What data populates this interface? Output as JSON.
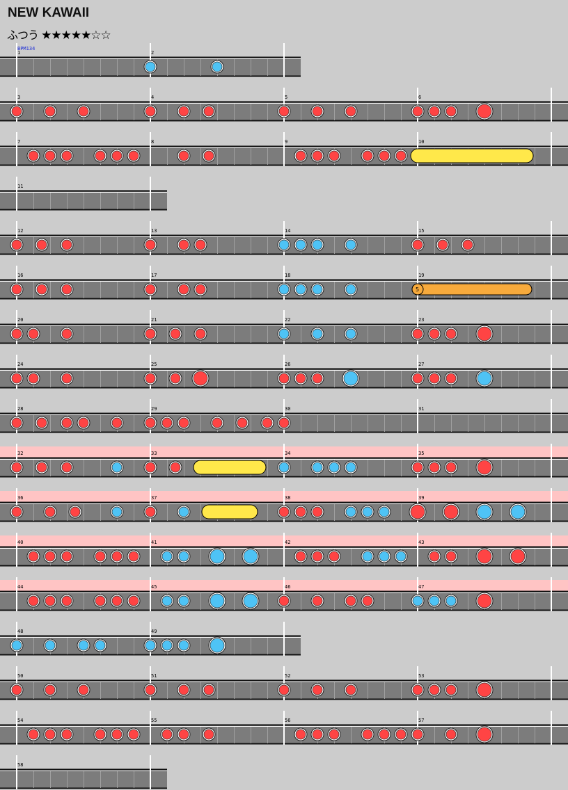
{
  "header": {
    "title": "NEW KAWAII",
    "difficulty_label": "ふつう",
    "stars": "★★★★★☆☆"
  },
  "bpm_label": "BPM134",
  "colors": {
    "don": "#ff4444",
    "ka": "#4ec3f5",
    "drumroll": "#ffe84a",
    "balloon": "#f7aa3c",
    "gogo": "#ffc4c4",
    "lane": "#7c7c7c"
  },
  "chart_data": {
    "type": "taiko-score",
    "note_legend": {
      "d": "don",
      "k": "ka",
      "D": "big don",
      "K": "big ka"
    },
    "rows": [
      {
        "bars": [
          1,
          2
        ],
        "gogo": false,
        "notes": [
          {
            "p": 8,
            "t": "k"
          },
          {
            "p": 12,
            "t": "k"
          }
        ]
      },
      {
        "bars": [
          3,
          4,
          5,
          6
        ],
        "gogo": false,
        "notes": [
          {
            "p": 0,
            "t": "d"
          },
          {
            "p": 2,
            "t": "d"
          },
          {
            "p": 4,
            "t": "d"
          },
          {
            "p": 8,
            "t": "d"
          },
          {
            "p": 10,
            "t": "d"
          },
          {
            "p": 11.5,
            "t": "d"
          },
          {
            "p": 16,
            "t": "d"
          },
          {
            "p": 18,
            "t": "d"
          },
          {
            "p": 20,
            "t": "d"
          },
          {
            "p": 24,
            "t": "d"
          },
          {
            "p": 25,
            "t": "d"
          },
          {
            "p": 26,
            "t": "d"
          },
          {
            "p": 28,
            "t": "D"
          }
        ]
      },
      {
        "bars": [
          7,
          8,
          9,
          10
        ],
        "gogo": false,
        "notes": [
          {
            "p": 1,
            "t": "d"
          },
          {
            "p": 2,
            "t": "d"
          },
          {
            "p": 3,
            "t": "d"
          },
          {
            "p": 5,
            "t": "d"
          },
          {
            "p": 6,
            "t": "d"
          },
          {
            "p": 7,
            "t": "d"
          },
          {
            "p": 10,
            "t": "d"
          },
          {
            "p": 11.5,
            "t": "d"
          },
          {
            "p": 17,
            "t": "d"
          },
          {
            "p": 18,
            "t": "d"
          },
          {
            "p": 19,
            "t": "d"
          },
          {
            "p": 21,
            "t": "d"
          },
          {
            "p": 22,
            "t": "d"
          },
          {
            "p": 23,
            "t": "d"
          }
        ],
        "rolls": [
          {
            "start": 24,
            "end": 30.5,
            "type": "drumroll"
          }
        ]
      },
      {
        "bars": [
          11
        ],
        "gogo": false,
        "notes": []
      },
      {
        "bars": [
          12,
          13,
          14,
          15
        ],
        "gogo": false,
        "notes": [
          {
            "p": 0,
            "t": "d"
          },
          {
            "p": 1.5,
            "t": "d"
          },
          {
            "p": 3,
            "t": "d"
          },
          {
            "p": 8,
            "t": "d"
          },
          {
            "p": 10,
            "t": "d"
          },
          {
            "p": 11,
            "t": "d"
          },
          {
            "p": 16,
            "t": "k"
          },
          {
            "p": 17,
            "t": "k"
          },
          {
            "p": 18,
            "t": "k"
          },
          {
            "p": 20,
            "t": "k"
          },
          {
            "p": 24,
            "t": "d"
          },
          {
            "p": 25.5,
            "t": "d"
          },
          {
            "p": 27,
            "t": "d"
          }
        ]
      },
      {
        "bars": [
          16,
          17,
          18,
          19
        ],
        "gogo": false,
        "notes": [
          {
            "p": 0,
            "t": "d"
          },
          {
            "p": 1.5,
            "t": "d"
          },
          {
            "p": 3,
            "t": "d"
          },
          {
            "p": 8,
            "t": "d"
          },
          {
            "p": 10,
            "t": "d"
          },
          {
            "p": 11,
            "t": "d"
          },
          {
            "p": 16,
            "t": "k"
          },
          {
            "p": 17,
            "t": "k"
          },
          {
            "p": 18,
            "t": "k"
          },
          {
            "p": 20,
            "t": "k"
          }
        ],
        "rolls": [
          {
            "start": 24,
            "end": 30.5,
            "type": "balloon",
            "count": "5"
          }
        ]
      },
      {
        "bars": [
          20,
          21,
          22,
          23
        ],
        "gogo": false,
        "notes": [
          {
            "p": 0,
            "t": "d"
          },
          {
            "p": 1,
            "t": "d"
          },
          {
            "p": 3,
            "t": "d"
          },
          {
            "p": 8,
            "t": "d"
          },
          {
            "p": 9.5,
            "t": "d"
          },
          {
            "p": 11,
            "t": "d"
          },
          {
            "p": 16,
            "t": "k"
          },
          {
            "p": 18,
            "t": "k"
          },
          {
            "p": 20,
            "t": "k"
          },
          {
            "p": 24,
            "t": "d"
          },
          {
            "p": 25,
            "t": "d"
          },
          {
            "p": 26,
            "t": "d"
          },
          {
            "p": 28,
            "t": "D"
          }
        ]
      },
      {
        "bars": [
          24,
          25,
          26,
          27
        ],
        "gogo": false,
        "notes": [
          {
            "p": 0,
            "t": "d"
          },
          {
            "p": 1,
            "t": "d"
          },
          {
            "p": 3,
            "t": "d"
          },
          {
            "p": 8,
            "t": "d"
          },
          {
            "p": 9.5,
            "t": "d"
          },
          {
            "p": 11,
            "t": "D"
          },
          {
            "p": 16,
            "t": "d"
          },
          {
            "p": 17,
            "t": "d"
          },
          {
            "p": 18,
            "t": "d"
          },
          {
            "p": 20,
            "t": "K"
          },
          {
            "p": 24,
            "t": "d"
          },
          {
            "p": 25,
            "t": "d"
          },
          {
            "p": 26,
            "t": "d"
          },
          {
            "p": 28,
            "t": "K"
          }
        ]
      },
      {
        "bars": [
          28,
          29,
          30,
          31
        ],
        "gogo": false,
        "notes": [
          {
            "p": 0,
            "t": "d"
          },
          {
            "p": 1.5,
            "t": "d"
          },
          {
            "p": 3,
            "t": "d"
          },
          {
            "p": 4,
            "t": "d"
          },
          {
            "p": 6,
            "t": "d"
          },
          {
            "p": 8,
            "t": "d"
          },
          {
            "p": 9,
            "t": "d"
          },
          {
            "p": 10,
            "t": "d"
          },
          {
            "p": 12,
            "t": "d"
          },
          {
            "p": 13.5,
            "t": "d"
          },
          {
            "p": 15,
            "t": "d"
          },
          {
            "p": 16,
            "t": "d"
          }
        ]
      },
      {
        "bars": [
          32,
          33,
          34,
          35
        ],
        "gogo": true,
        "notes": [
          {
            "p": 0,
            "t": "d"
          },
          {
            "p": 1.5,
            "t": "d"
          },
          {
            "p": 3,
            "t": "d"
          },
          {
            "p": 6,
            "t": "k"
          },
          {
            "p": 8,
            "t": "d"
          },
          {
            "p": 9.5,
            "t": "d"
          },
          {
            "p": 16,
            "t": "k"
          },
          {
            "p": 18,
            "t": "k"
          },
          {
            "p": 19,
            "t": "k"
          },
          {
            "p": 20,
            "t": "k"
          },
          {
            "p": 24,
            "t": "d"
          },
          {
            "p": 25,
            "t": "d"
          },
          {
            "p": 26,
            "t": "d"
          },
          {
            "p": 28,
            "t": "D"
          }
        ],
        "rolls": [
          {
            "start": 11,
            "end": 14.5,
            "type": "drumroll"
          }
        ]
      },
      {
        "bars": [
          36,
          37,
          38,
          39
        ],
        "gogo": true,
        "notes": [
          {
            "p": 0,
            "t": "d"
          },
          {
            "p": 2,
            "t": "d"
          },
          {
            "p": 3.5,
            "t": "d"
          },
          {
            "p": 6,
            "t": "k"
          },
          {
            "p": 8,
            "t": "d"
          },
          {
            "p": 10,
            "t": "k"
          },
          {
            "p": 16,
            "t": "d"
          },
          {
            "p": 17,
            "t": "d"
          },
          {
            "p": 18,
            "t": "d"
          },
          {
            "p": 20,
            "t": "k"
          },
          {
            "p": 21,
            "t": "k"
          },
          {
            "p": 22,
            "t": "k"
          },
          {
            "p": 24,
            "t": "D"
          },
          {
            "p": 26,
            "t": "D"
          },
          {
            "p": 28,
            "t": "K"
          },
          {
            "p": 30,
            "t": "K"
          }
        ],
        "rolls": [
          {
            "start": 11.5,
            "end": 14,
            "type": "drumroll"
          }
        ]
      },
      {
        "bars": [
          40,
          41,
          42,
          43
        ],
        "gogo": true,
        "notes": [
          {
            "p": 1,
            "t": "d"
          },
          {
            "p": 2,
            "t": "d"
          },
          {
            "p": 3,
            "t": "d"
          },
          {
            "p": 5,
            "t": "d"
          },
          {
            "p": 6,
            "t": "d"
          },
          {
            "p": 7,
            "t": "d"
          },
          {
            "p": 9,
            "t": "k"
          },
          {
            "p": 10,
            "t": "k"
          },
          {
            "p": 12,
            "t": "K"
          },
          {
            "p": 14,
            "t": "K"
          },
          {
            "p": 17,
            "t": "d"
          },
          {
            "p": 18,
            "t": "d"
          },
          {
            "p": 19,
            "t": "d"
          },
          {
            "p": 21,
            "t": "k"
          },
          {
            "p": 22,
            "t": "k"
          },
          {
            "p": 23,
            "t": "k"
          },
          {
            "p": 25,
            "t": "d"
          },
          {
            "p": 26,
            "t": "d"
          },
          {
            "p": 28,
            "t": "D"
          },
          {
            "p": 30,
            "t": "D"
          }
        ]
      },
      {
        "bars": [
          44,
          45,
          46,
          47
        ],
        "gogo": true,
        "notes": [
          {
            "p": 1,
            "t": "d"
          },
          {
            "p": 2,
            "t": "d"
          },
          {
            "p": 3,
            "t": "d"
          },
          {
            "p": 5,
            "t": "d"
          },
          {
            "p": 6,
            "t": "d"
          },
          {
            "p": 7,
            "t": "d"
          },
          {
            "p": 9,
            "t": "k"
          },
          {
            "p": 10,
            "t": "k"
          },
          {
            "p": 12,
            "t": "K"
          },
          {
            "p": 14,
            "t": "K"
          },
          {
            "p": 16,
            "t": "d"
          },
          {
            "p": 18,
            "t": "d"
          },
          {
            "p": 20,
            "t": "d"
          },
          {
            "p": 21,
            "t": "d"
          },
          {
            "p": 24,
            "t": "k"
          },
          {
            "p": 25,
            "t": "k"
          },
          {
            "p": 26,
            "t": "k"
          },
          {
            "p": 28,
            "t": "D"
          }
        ]
      },
      {
        "bars": [
          48,
          49
        ],
        "gogo": false,
        "notes": [
          {
            "p": 0,
            "t": "k"
          },
          {
            "p": 2,
            "t": "k"
          },
          {
            "p": 4,
            "t": "k"
          },
          {
            "p": 5,
            "t": "k"
          },
          {
            "p": 8,
            "t": "k"
          },
          {
            "p": 9,
            "t": "k"
          },
          {
            "p": 10,
            "t": "k"
          },
          {
            "p": 12,
            "t": "K"
          }
        ]
      },
      {
        "bars": [
          50,
          51,
          52,
          53
        ],
        "gogo": false,
        "notes": [
          {
            "p": 0,
            "t": "d"
          },
          {
            "p": 2,
            "t": "d"
          },
          {
            "p": 4,
            "t": "d"
          },
          {
            "p": 8,
            "t": "d"
          },
          {
            "p": 10,
            "t": "d"
          },
          {
            "p": 11.5,
            "t": "d"
          },
          {
            "p": 16,
            "t": "d"
          },
          {
            "p": 18,
            "t": "d"
          },
          {
            "p": 20,
            "t": "d"
          },
          {
            "p": 24,
            "t": "d"
          },
          {
            "p": 25,
            "t": "d"
          },
          {
            "p": 26,
            "t": "d"
          },
          {
            "p": 28,
            "t": "D"
          }
        ]
      },
      {
        "bars": [
          54,
          55,
          56,
          57
        ],
        "gogo": false,
        "notes": [
          {
            "p": 1,
            "t": "d"
          },
          {
            "p": 2,
            "t": "d"
          },
          {
            "p": 3,
            "t": "d"
          },
          {
            "p": 5,
            "t": "d"
          },
          {
            "p": 6,
            "t": "d"
          },
          {
            "p": 7,
            "t": "d"
          },
          {
            "p": 9,
            "t": "d"
          },
          {
            "p": 10,
            "t": "d"
          },
          {
            "p": 11.5,
            "t": "d"
          },
          {
            "p": 17,
            "t": "d"
          },
          {
            "p": 18,
            "t": "d"
          },
          {
            "p": 19,
            "t": "d"
          },
          {
            "p": 21,
            "t": "d"
          },
          {
            "p": 22,
            "t": "d"
          },
          {
            "p": 23,
            "t": "d"
          },
          {
            "p": 24,
            "t": "d"
          },
          {
            "p": 26,
            "t": "d"
          },
          {
            "p": 28,
            "t": "D"
          }
        ]
      },
      {
        "bars": [
          58
        ],
        "gogo": false,
        "notes": []
      }
    ]
  }
}
